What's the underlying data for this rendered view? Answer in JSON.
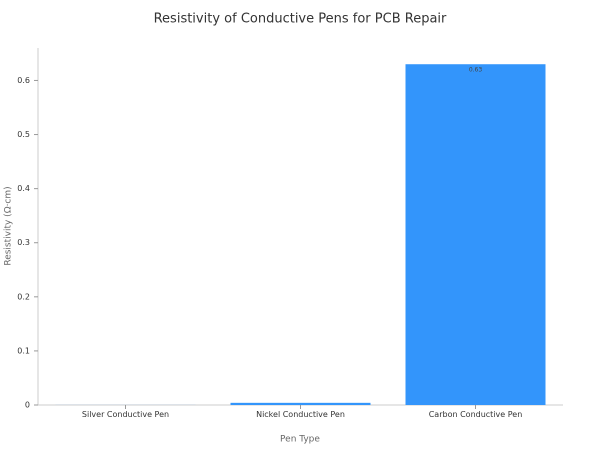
{
  "chart_data": {
    "type": "bar",
    "title": "Resistivity of Conductive Pens for PCB Repair",
    "x_label": "Pen Type",
    "y_label": "Resistivity (Ω·cm)",
    "categories": [
      "Silver Conductive Pen",
      "Nickel Conductive Pen",
      "Carbon Conductive Pen"
    ],
    "values": [
      0.0001,
      0.004,
      0.63
    ],
    "color": "#3395fb",
    "ylim": [
      0,
      0.66
    ],
    "yticks": [
      0,
      0.1,
      0.2,
      0.3,
      0.4,
      0.5,
      0.6
    ],
    "grid": false
  }
}
